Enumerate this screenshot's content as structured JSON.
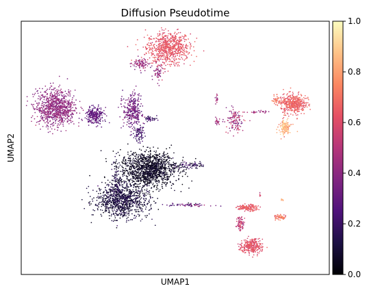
{
  "chart_data": {
    "type": "scatter",
    "title": "Diffusion Pseudotime",
    "xlabel": "UMAP1",
    "ylabel": "UMAP2",
    "x_ticks": [],
    "y_ticks": [],
    "grid": false,
    "legend": "none",
    "colorbar": {
      "label": "",
      "colormap": "magma",
      "ticks": [
        "0.0",
        "0.2",
        "0.4",
        "0.6",
        "0.8",
        "1.0"
      ],
      "range": [
        0,
        1
      ],
      "stops": [
        "#000004",
        "#1c1044",
        "#4f127b",
        "#812581",
        "#b5367a",
        "#e55064",
        "#fb8761",
        "#fec287",
        "#fcfdbf"
      ]
    },
    "clusters": [
      {
        "x": 9.6,
        "y": 10.5,
        "sx": 1.3,
        "sy": 1.0,
        "n": 750,
        "value": 0.62,
        "spread": 0.04
      },
      {
        "x": 7.6,
        "y": 9.3,
        "sx": 0.5,
        "sy": 0.35,
        "n": 90,
        "value": 0.42,
        "spread": 0.06
      },
      {
        "x": 8.9,
        "y": 8.6,
        "sx": 0.3,
        "sy": 0.6,
        "n": 60,
        "value": 0.4,
        "spread": 0.07
      },
      {
        "x": 1.5,
        "y": 6.0,
        "sx": 1.15,
        "sy": 1.1,
        "n": 900,
        "value": 0.4,
        "spread": 0.04
      },
      {
        "x": 4.3,
        "y": 5.4,
        "sx": 0.55,
        "sy": 0.5,
        "n": 250,
        "value": 0.28,
        "spread": 0.04
      },
      {
        "x": 7.0,
        "y": 5.8,
        "sx": 0.55,
        "sy": 1.1,
        "n": 300,
        "value": 0.32,
        "spread": 0.06
      },
      {
        "x": 7.5,
        "y": 4.1,
        "sx": 0.3,
        "sy": 0.55,
        "n": 80,
        "value": 0.2,
        "spread": 0.05
      },
      {
        "x": 8.3,
        "y": 5.2,
        "sx": 0.4,
        "sy": 0.15,
        "n": 40,
        "value": 0.2,
        "spread": 0.05
      },
      {
        "x": 8.2,
        "y": 1.4,
        "sx": 1.7,
        "sy": 1.1,
        "n": 1300,
        "value": 0.05,
        "spread": 0.03
      },
      {
        "x": 6.2,
        "y": -1.0,
        "sx": 1.6,
        "sy": 1.0,
        "n": 900,
        "value": 0.1,
        "spread": 0.04
      },
      {
        "x": 5.9,
        "y": 0.2,
        "sx": 0.4,
        "sy": 1.5,
        "n": 150,
        "value": 0.12,
        "spread": 0.05
      },
      {
        "x": 11.0,
        "y": 1.7,
        "sx": 0.9,
        "sy": 0.25,
        "n": 80,
        "value": 0.15,
        "spread": 0.06
      },
      {
        "x": 11.0,
        "y": -1.3,
        "sx": 1.2,
        "sy": 0.12,
        "n": 60,
        "value": 0.3,
        "spread": 0.1
      },
      {
        "x": 14.4,
        "y": 5.0,
        "sx": 0.5,
        "sy": 0.8,
        "n": 120,
        "value": 0.45,
        "spread": 0.1
      },
      {
        "x": 16.0,
        "y": 5.7,
        "sx": 0.7,
        "sy": 0.08,
        "n": 25,
        "value": 0.45,
        "spread": 0.05
      },
      {
        "x": 13.1,
        "y": 6.7,
        "sx": 0.1,
        "sy": 0.35,
        "n": 15,
        "value": 0.45,
        "spread": 0.05
      },
      {
        "x": 13.2,
        "y": 5.0,
        "sx": 0.3,
        "sy": 0.3,
        "n": 25,
        "value": 0.45,
        "spread": 0.05
      },
      {
        "x": 18.6,
        "y": 6.3,
        "sx": 0.75,
        "sy": 0.6,
        "n": 450,
        "value": 0.65,
        "spread": 0.04
      },
      {
        "x": 18.0,
        "y": 4.5,
        "sx": 0.35,
        "sy": 0.5,
        "n": 150,
        "value": 0.82,
        "spread": 0.07
      },
      {
        "x": 17.4,
        "y": 6.6,
        "sx": 0.3,
        "sy": 0.25,
        "n": 40,
        "value": 0.7,
        "spread": 0.05
      },
      {
        "x": 15.3,
        "y": -1.5,
        "sx": 0.6,
        "sy": 0.2,
        "n": 150,
        "value": 0.62,
        "spread": 0.05
      },
      {
        "x": 14.8,
        "y": -2.7,
        "sx": 0.2,
        "sy": 0.5,
        "n": 70,
        "value": 0.52,
        "spread": 0.06
      },
      {
        "x": 15.6,
        "y": -4.4,
        "sx": 0.65,
        "sy": 0.45,
        "n": 300,
        "value": 0.6,
        "spread": 0.04
      },
      {
        "x": 17.7,
        "y": -2.2,
        "sx": 0.4,
        "sy": 0.15,
        "n": 60,
        "value": 0.7,
        "spread": 0.06
      },
      {
        "x": 17.8,
        "y": -0.9,
        "sx": 0.1,
        "sy": 0.08,
        "n": 8,
        "value": 0.8,
        "spread": 0.05
      },
      {
        "x": 16.2,
        "y": -0.5,
        "sx": 0.08,
        "sy": 0.2,
        "n": 8,
        "value": 0.55,
        "spread": 0.05
      }
    ],
    "xlim": [
      -1.0,
      21.2
    ],
    "ylim": [
      -6.5,
      12.5
    ],
    "point_count": 6384
  }
}
